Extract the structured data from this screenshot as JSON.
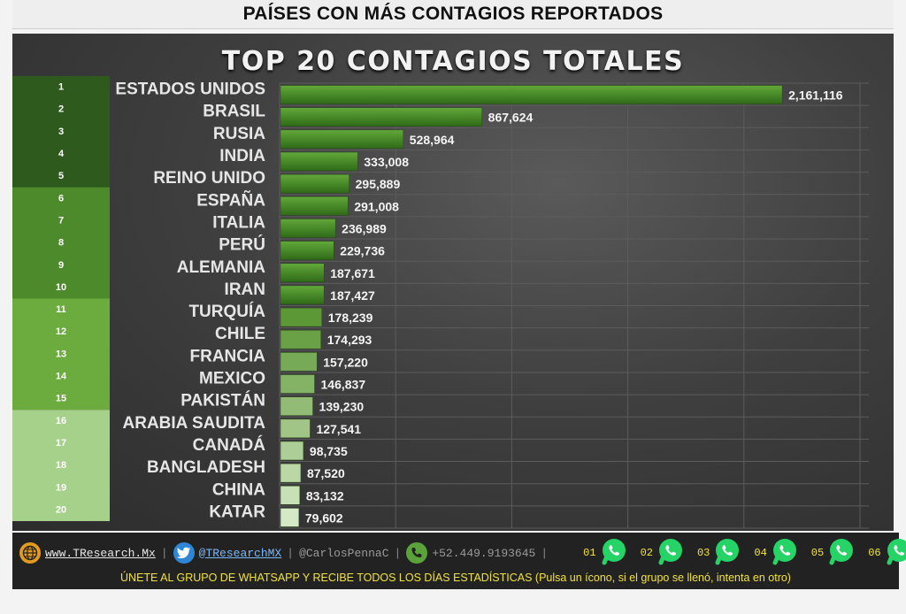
{
  "header": {
    "title": "PAÍSES CON MÁS CONTAGIOS REPORTADOS"
  },
  "colors": {
    "tier1": "#2f5a1d",
    "tier2": "#4c8a2c",
    "tier3": "#6cab3e",
    "tier4": "#a5d18a",
    "bar_dark": "#3e7a22",
    "bar_light": "#d6e9c6",
    "whatsapp": "#25d366",
    "footer_text": "#f2e33a"
  },
  "chart_data": {
    "type": "bar",
    "orientation": "horizontal",
    "title": "TOP 20 CONTAGIOS TOTALES",
    "xlabel": "",
    "ylabel": "",
    "ranks": [
      "1",
      "2",
      "3",
      "4",
      "5",
      "6",
      "7",
      "8",
      "9",
      "10",
      "11",
      "12",
      "13",
      "14",
      "15",
      "16",
      "17",
      "18",
      "19",
      "20"
    ],
    "categories": [
      "ESTADOS UNIDOS",
      "BRASIL",
      "RUSIA",
      "INDIA",
      "REINO UNIDO",
      "ESPAÑA",
      "ITALIA",
      "PERÚ",
      "ALEMANIA",
      "IRAN",
      "TURQUÍA",
      "CHILE",
      "FRANCIA",
      "MEXICO",
      "PAKISTÁN",
      "ARABIA SAUDITA",
      "CANADÁ",
      "BANGLADESH",
      "CHINA",
      "KATAR"
    ],
    "values": [
      2161116,
      867624,
      528964,
      333008,
      295889,
      291008,
      236989,
      229736,
      187671,
      187427,
      178239,
      174293,
      157220,
      146837,
      139230,
      127541,
      98735,
      87520,
      83132,
      79602
    ],
    "value_labels": [
      "2,161,116",
      "867,624",
      "528,964",
      "333,008",
      "295,889",
      "291,008",
      "236,989",
      "229,736",
      "187,671",
      "187,427",
      "178,239",
      "174,293",
      "157,220",
      "146,837",
      "139,230",
      "127,541",
      "98,735",
      "87,520",
      "83,132",
      "79,602"
    ],
    "xlim": [
      0,
      2500000
    ],
    "grid": true,
    "legend": "none"
  },
  "footer": {
    "website": "www.TResearch.Mx",
    "twitter": "@TResearchMX",
    "author": "@CarlosPennaC",
    "phone": "+52.449.9193645",
    "whatsapp_groups": [
      "01",
      "02",
      "03",
      "04",
      "05",
      "06"
    ],
    "note": "ÚNETE AL GRUPO DE WHATSAPP Y RECIBE TODOS LOS DÍAS ESTADÍSTICAS (Pulsa un ícono, si el grupo se llenó, intenta en otro)"
  }
}
